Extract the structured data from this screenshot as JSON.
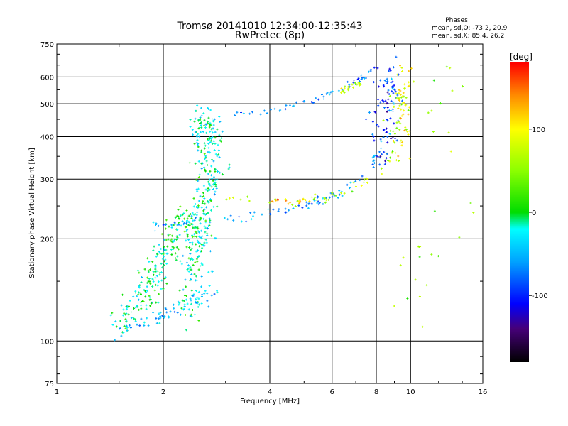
{
  "chart_data": {
    "type": "scatter",
    "title_line1": "Tromsø 20141010 12:34:00-12:35:43",
    "title_line2": "RwPretec (8p)",
    "stats": {
      "header": "Phases",
      "line_o": "mean, sd,O: -73.2, 20.9",
      "line_x": "mean, sd,X:  85.4, 26.2"
    },
    "xlabel": "Frequency [MHz]",
    "ylabel": "Stationary phase Virtual Height [km]",
    "x_scale": "log",
    "y_scale": "log",
    "xlim": [
      1,
      16
    ],
    "ylim": [
      75,
      750
    ],
    "x_ticks": [
      1,
      2,
      4,
      6,
      8,
      10,
      16
    ],
    "x_tick_labels": [
      "1",
      "2",
      "4",
      "6",
      "8",
      "10",
      "16"
    ],
    "y_ticks": [
      75,
      100,
      200,
      300,
      400,
      500,
      600,
      750
    ],
    "y_tick_labels": [
      "75",
      "100",
      "200",
      "300",
      "400",
      "500",
      "600",
      "750"
    ],
    "grid": true,
    "colorbar": {
      "label": "[deg]",
      "range": [
        -180,
        180
      ],
      "ticks": [
        100,
        0,
        -100
      ],
      "tick_labels": [
        "100",
        "0",
        "-100"
      ]
    },
    "traces": [
      {
        "name": "o-lower",
        "color_deg": -60,
        "spread": 0.015,
        "count": 90,
        "points": [
          [
            2.95,
            228
          ],
          [
            3.3,
            231
          ],
          [
            3.8,
            236
          ],
          [
            4.3,
            241
          ],
          [
            4.8,
            247
          ],
          [
            5.3,
            254
          ],
          [
            5.8,
            262
          ],
          [
            6.3,
            272
          ],
          [
            6.8,
            286
          ],
          [
            7.3,
            304
          ],
          [
            7.8,
            330
          ],
          [
            8.2,
            365
          ],
          [
            8.5,
            410
          ],
          [
            8.75,
            470
          ],
          [
            8.95,
            540
          ],
          [
            9.0,
            610
          ]
        ]
      },
      {
        "name": "o-upper",
        "color_deg": -70,
        "spread": 0.012,
        "count": 55,
        "points": [
          [
            3.1,
            468
          ],
          [
            3.5,
            470
          ],
          [
            4.0,
            476
          ],
          [
            4.5,
            488
          ],
          [
            5.0,
            503
          ],
          [
            5.5,
            520
          ],
          [
            6.0,
            540
          ],
          [
            6.6,
            565
          ],
          [
            7.2,
            595
          ],
          [
            7.8,
            630
          ]
        ]
      },
      {
        "name": "x-lower",
        "color_deg": 60,
        "spread": 0.015,
        "count": 60,
        "points": [
          [
            3.0,
            262
          ],
          [
            3.6,
            260
          ],
          [
            4.2,
            258
          ],
          [
            4.7,
            258
          ],
          [
            5.2,
            260
          ],
          [
            5.8,
            265
          ],
          [
            6.4,
            273
          ],
          [
            7.0,
            285
          ],
          [
            7.6,
            298
          ],
          [
            8.2,
            315
          ],
          [
            8.7,
            340
          ],
          [
            9.05,
            370
          ],
          [
            9.35,
            420
          ],
          [
            9.45,
            480
          ],
          [
            9.5,
            560
          ]
        ]
      },
      {
        "name": "x-orange",
        "color_deg": 130,
        "spread": 0.01,
        "count": 18,
        "points": [
          [
            4.0,
            262
          ],
          [
            4.3,
            258
          ],
          [
            4.6,
            257
          ],
          [
            4.9,
            257
          ],
          [
            5.2,
            259
          ]
        ]
      },
      {
        "name": "x-upper",
        "color_deg": 70,
        "spread": 0.01,
        "count": 20,
        "points": [
          [
            6.4,
            545
          ],
          [
            6.8,
            560
          ],
          [
            7.2,
            575
          ]
        ]
      },
      {
        "name": "cusp-column-o",
        "color_deg": -100,
        "spread": 0.05,
        "count": 80,
        "points": [
          [
            8.2,
            320
          ],
          [
            8.3,
            400
          ],
          [
            8.4,
            480
          ],
          [
            8.5,
            560
          ],
          [
            8.6,
            630
          ]
        ]
      },
      {
        "name": "cusp-column-x",
        "color_deg": 90,
        "spread": 0.04,
        "count": 60,
        "points": [
          [
            9.0,
            320
          ],
          [
            9.2,
            400
          ],
          [
            9.3,
            480
          ],
          [
            9.4,
            560
          ],
          [
            9.5,
            630
          ]
        ]
      },
      {
        "name": "spread-f-column",
        "color_deg": -20,
        "spread": 0.05,
        "count": 340,
        "points": [
          [
            2.4,
            120
          ],
          [
            2.5,
            180
          ],
          [
            2.6,
            240
          ],
          [
            2.7,
            320
          ],
          [
            2.7,
            400
          ],
          [
            2.6,
            470
          ]
        ]
      },
      {
        "name": "spread-f-low",
        "color_deg": -10,
        "spread": 0.05,
        "count": 240,
        "points": [
          [
            1.55,
            112
          ],
          [
            1.7,
            130
          ],
          [
            1.85,
            150
          ],
          [
            2.0,
            175
          ],
          [
            2.2,
            210
          ],
          [
            2.4,
            230
          ]
        ]
      },
      {
        "name": "low-trace",
        "color_deg": -40,
        "spread": 0.02,
        "count": 60,
        "points": [
          [
            1.45,
            112
          ],
          [
            1.6,
            111
          ],
          [
            1.8,
            114
          ],
          [
            2.0,
            118
          ],
          [
            2.2,
            124
          ],
          [
            2.45,
            132
          ],
          [
            2.8,
            138
          ]
        ]
      },
      {
        "name": "e-trace",
        "color_deg": -50,
        "spread": 0.015,
        "count": 25,
        "points": [
          [
            1.9,
            218
          ],
          [
            2.1,
            220
          ],
          [
            2.3,
            224
          ],
          [
            2.5,
            229
          ]
        ]
      },
      {
        "name": "isolated-far",
        "color_deg": 50,
        "spread": 0.08,
        "count": 30,
        "points": [
          [
            10.2,
            110
          ],
          [
            10.6,
            145
          ],
          [
            11.0,
            220
          ],
          [
            13.5,
            200
          ],
          [
            13.0,
            605
          ],
          [
            12.0,
            420
          ],
          [
            10.5,
            470
          ]
        ]
      }
    ]
  }
}
